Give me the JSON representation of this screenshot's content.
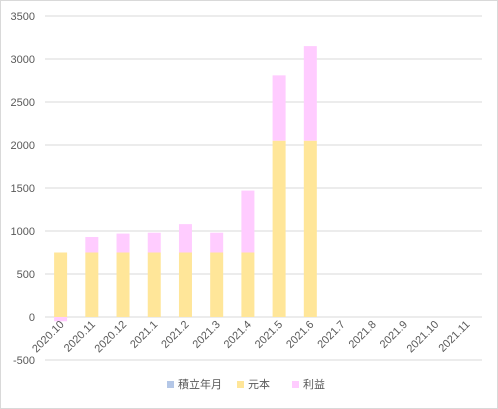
{
  "chart_data": {
    "type": "bar",
    "stacked": true,
    "categories": [
      "2020.10",
      "2020.11",
      "2020.12",
      "2021.1",
      "2021.2",
      "2021.3",
      "2021.4",
      "2021.5",
      "2021.6",
      "2021.7",
      "2021.8",
      "2021.9",
      "2021.10",
      "2021.11"
    ],
    "series": [
      {
        "name": "積立年月",
        "color": "#b4c7e7",
        "values": [
          0,
          0,
          0,
          0,
          0,
          0,
          0,
          0,
          0,
          0,
          0,
          0,
          0,
          0
        ]
      },
      {
        "name": "元本",
        "color": "#ffe699",
        "values": [
          750,
          750,
          750,
          750,
          750,
          750,
          750,
          2050,
          2050,
          0,
          0,
          0,
          0,
          0
        ]
      },
      {
        "name": "利益",
        "color": "#ffccff",
        "values": [
          -50,
          180,
          220,
          230,
          330,
          230,
          720,
          760,
          1100,
          0,
          0,
          0,
          0,
          0
        ]
      }
    ],
    "yticks": [
      "3500",
      "3000",
      "2500",
      "2000",
      "1500",
      "1000",
      "500",
      "0",
      "-500"
    ],
    "ylim": [
      -500,
      3500
    ],
    "grid": true,
    "legend_position": "bottom",
    "gridline_color": "#d9d9d9",
    "tick_color": "#595959"
  }
}
